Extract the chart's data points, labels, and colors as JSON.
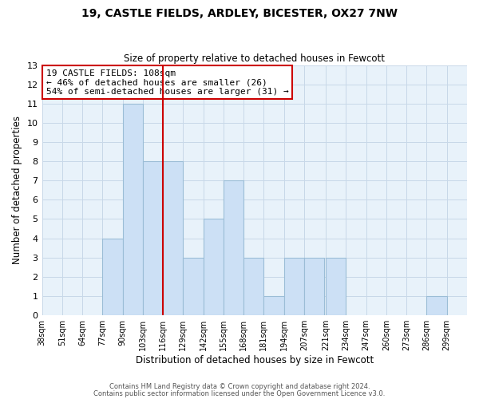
{
  "title": "19, CASTLE FIELDS, ARDLEY, BICESTER, OX27 7NW",
  "subtitle": "Size of property relative to detached houses in Fewcott",
  "xlabel": "Distribution of detached houses by size in Fewcott",
  "ylabel": "Number of detached properties",
  "bin_labels": [
    "38sqm",
    "51sqm",
    "64sqm",
    "77sqm",
    "90sqm",
    "103sqm",
    "116sqm",
    "129sqm",
    "142sqm",
    "155sqm",
    "168sqm",
    "181sqm",
    "194sqm",
    "207sqm",
    "221sqm",
    "234sqm",
    "247sqm",
    "260sqm",
    "273sqm",
    "286sqm",
    "299sqm"
  ],
  "bin_left_edges": [
    38,
    51,
    64,
    77,
    90,
    103,
    116,
    129,
    142,
    155,
    168,
    181,
    194,
    207,
    221,
    234,
    247,
    260,
    273,
    286,
    299
  ],
  "bin_width": 13,
  "counts": [
    0,
    0,
    0,
    4,
    11,
    8,
    8,
    3,
    5,
    7,
    3,
    1,
    3,
    3,
    3,
    0,
    0,
    0,
    0,
    1,
    0
  ],
  "bar_color": "#cce0f5",
  "bar_edge_color": "#9bbdd6",
  "vline_x": 116,
  "vline_color": "#cc0000",
  "annotation_text": "19 CASTLE FIELDS: 108sqm\n← 46% of detached houses are smaller (26)\n54% of semi-detached houses are larger (31) →",
  "annotation_box_edge": "#cc0000",
  "annotation_fontsize": 8,
  "ylim": [
    0,
    13
  ],
  "yticks": [
    0,
    1,
    2,
    3,
    4,
    5,
    6,
    7,
    8,
    9,
    10,
    11,
    12,
    13
  ],
  "footer1": "Contains HM Land Registry data © Crown copyright and database right 2024.",
  "footer2": "Contains public sector information licensed under the Open Government Licence v3.0.",
  "grid_color": "#c8d8e8",
  "bg_color": "#e8f2fa",
  "title_fontsize": 10,
  "subtitle_fontsize": 8.5,
  "ylabel_fontsize": 8.5,
  "xlabel_fontsize": 8.5,
  "ytick_fontsize": 8,
  "xtick_fontsize": 7
}
